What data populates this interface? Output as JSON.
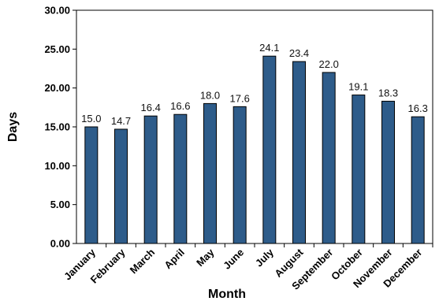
{
  "chart_data": {
    "type": "bar",
    "title": "",
    "xlabel": "Month",
    "ylabel": "Days",
    "ylim": [
      0,
      30
    ],
    "ytick_step": 5,
    "ytick_labels": [
      "0.00",
      "5.00",
      "10.00",
      "15.00",
      "20.00",
      "25.00",
      "30.00"
    ],
    "grid": false,
    "legend": "none",
    "bar_color": "#2e5c8a",
    "categories": [
      "January",
      "February",
      "March",
      "April",
      "May",
      "June",
      "July",
      "August",
      "September",
      "October",
      "November",
      "December"
    ],
    "values": [
      15.0,
      14.7,
      16.4,
      16.6,
      18.0,
      17.6,
      24.1,
      23.4,
      22.0,
      19.1,
      18.3,
      16.3
    ],
    "data_labels": [
      "15.0",
      "14.7",
      "16.4",
      "16.6",
      "18.0",
      "17.6",
      "24.1",
      "23.4",
      "22.0",
      "19.1",
      "18.3",
      "16.3"
    ]
  }
}
